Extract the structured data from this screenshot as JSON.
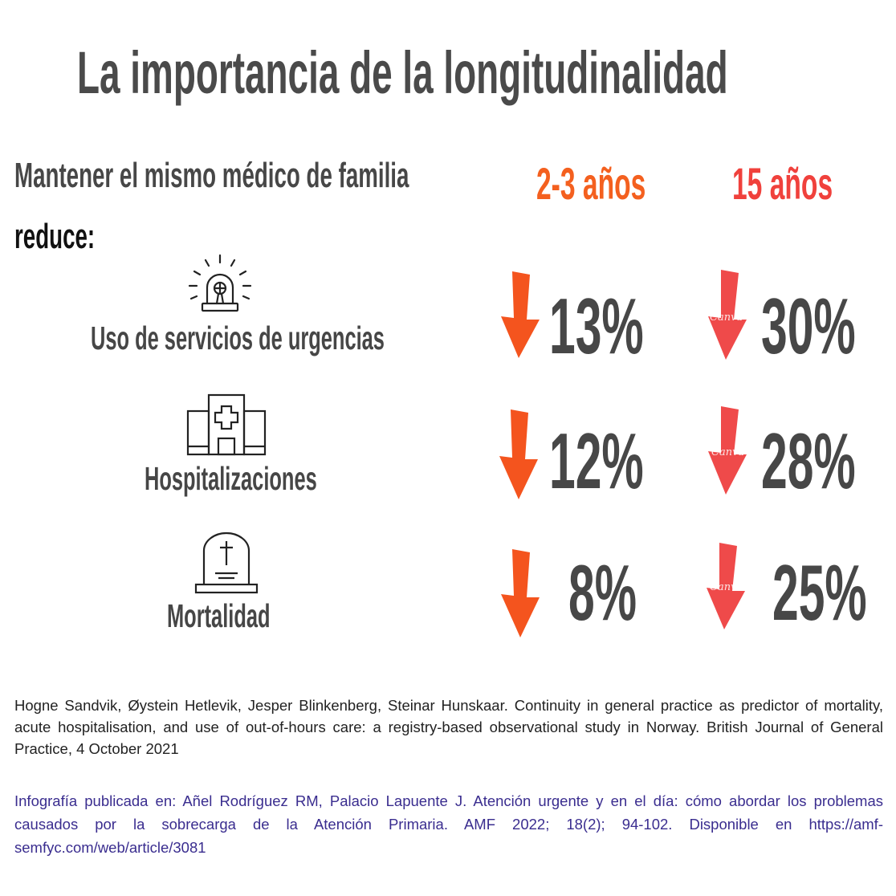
{
  "title": "La importancia de la longitudinalidad",
  "intro": {
    "line1": "Mantener el  mismo médico de familia",
    "line2": "reduce:"
  },
  "columns": [
    {
      "label": "2-3 años",
      "color": "#f4601f"
    },
    {
      "label": "15 años",
      "color": "#f0413c"
    }
  ],
  "rows": [
    {
      "label": "Uso de servicios de urgencias",
      "icon": "emergency-siren-icon",
      "short": "13%",
      "long": "30%"
    },
    {
      "label": "Hospitalizaciones",
      "icon": "hospital-building-icon",
      "short": "12%",
      "long": "28%"
    },
    {
      "label": "Mortalidad",
      "icon": "tombstone-icon",
      "short": "8%",
      "long": "25%"
    }
  ],
  "watermark": "Canva",
  "reference": "Hogne Sandvik, Øystein Hetlevik, Jesper Blinkenberg, Steinar Hunskaar. Continuity in general practice as predictor of mortality, acute hospitalisation, and use of out-of-hours care: a registry-based observational study in Norway. British Journal of General Practice, 4 October 2021",
  "credit": "Infografía publicada en: Añel Rodríguez RM, Palacio Lapuente J. Atención urgente y en el día: cómo abordar los problemas causados por la sobrecarga de la Atención Primaria. AMF 2022; 18(2); 94-102. Disponible en https://amf-semfyc.com/web/article/3081",
  "colors": {
    "arrow_short": "#f4541e",
    "arrow_long": "#ef4a4a",
    "text": "#474747",
    "credit": "#3a2d8f"
  }
}
